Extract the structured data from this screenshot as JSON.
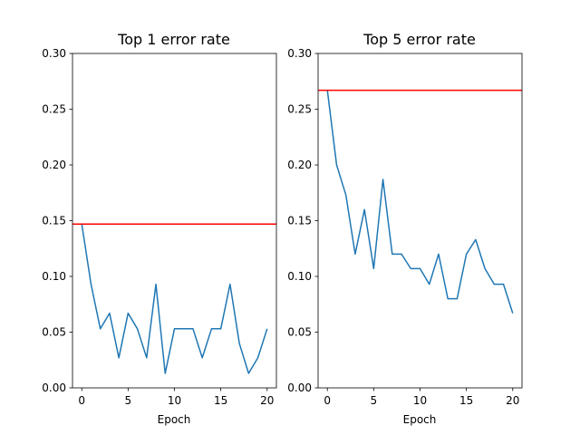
{
  "chart_data": [
    {
      "type": "line",
      "title": "Top 1 error rate",
      "xlabel": "Epoch",
      "ylabel": "",
      "xlim": [
        -1,
        21
      ],
      "ylim": [
        0,
        0.3
      ],
      "xticks": [
        "0",
        "5",
        "10",
        "15",
        "20"
      ],
      "yticks": [
        "0.00",
        "0.05",
        "0.10",
        "0.15",
        "0.20",
        "0.25",
        "0.30"
      ],
      "grid": false,
      "series": [
        {
          "color": "#1f77b4",
          "x": [
            0,
            1,
            2,
            3,
            4,
            5,
            6,
            7,
            8,
            9,
            10,
            11,
            12,
            13,
            14,
            15,
            16,
            17,
            18,
            19,
            20
          ],
          "values": [
            0.147,
            0.093,
            0.053,
            0.067,
            0.027,
            0.067,
            0.053,
            0.027,
            0.093,
            0.013,
            0.053,
            0.053,
            0.053,
            0.027,
            0.053,
            0.053,
            0.093,
            0.04,
            0.013,
            0.027,
            0.053
          ]
        }
      ],
      "reference_line": {
        "y": 0.147,
        "color": "#ff0000"
      }
    },
    {
      "type": "line",
      "title": "Top 5 error rate",
      "xlabel": "Epoch",
      "ylabel": "",
      "xlim": [
        -1,
        21
      ],
      "ylim": [
        0,
        0.3
      ],
      "xticks": [
        "0",
        "5",
        "10",
        "15",
        "20"
      ],
      "yticks": [
        "0.00",
        "0.05",
        "0.10",
        "0.15",
        "0.20",
        "0.25",
        "0.30"
      ],
      "grid": false,
      "series": [
        {
          "color": "#1f77b4",
          "x": [
            0,
            1,
            2,
            3,
            4,
            5,
            6,
            7,
            8,
            9,
            10,
            11,
            12,
            13,
            14,
            15,
            16,
            17,
            18,
            19,
            20
          ],
          "values": [
            0.267,
            0.2,
            0.173,
            0.12,
            0.16,
            0.107,
            0.187,
            0.12,
            0.12,
            0.107,
            0.107,
            0.093,
            0.12,
            0.08,
            0.08,
            0.12,
            0.133,
            0.107,
            0.093,
            0.093,
            0.067
          ]
        }
      ],
      "reference_line": {
        "y": 0.267,
        "color": "#ff0000"
      }
    }
  ]
}
